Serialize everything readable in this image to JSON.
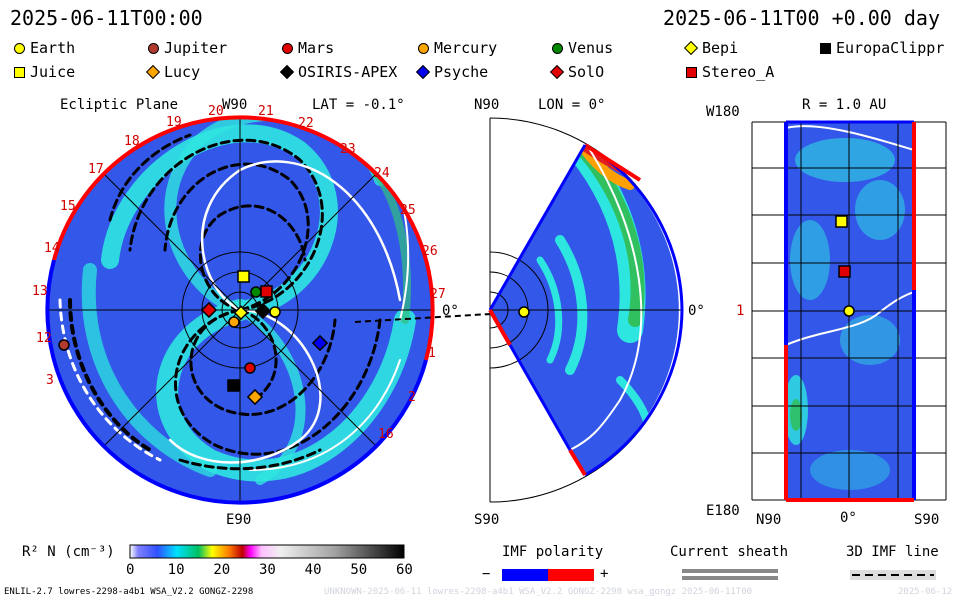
{
  "header": {
    "time_left": "2025-06-11T00:00",
    "time_right": "2025-06-11T00 +0.00 day"
  },
  "legend": [
    {
      "label": "Earth",
      "shape": "circle",
      "color": "#ffff00"
    },
    {
      "label": "Jupiter",
      "shape": "circle",
      "color": "#b03a2e"
    },
    {
      "label": "Mars",
      "shape": "circle",
      "color": "#e00000"
    },
    {
      "label": "Mercury",
      "shape": "circle",
      "color": "#ffa500"
    },
    {
      "label": "Venus",
      "shape": "circle",
      "color": "#008800"
    },
    {
      "label": "Bepi",
      "shape": "diamond",
      "color": "#ffff00"
    },
    {
      "label": "EuropaClippr",
      "shape": "square",
      "color": "#000000"
    },
    {
      "label": "Juice",
      "shape": "square",
      "color": "#ffff00"
    },
    {
      "label": "Lucy",
      "shape": "diamond",
      "color": "#ffa500"
    },
    {
      "label": "OSIRIS-APEX",
      "shape": "diamond",
      "color": "#000000"
    },
    {
      "label": "Psyche",
      "shape": "diamond",
      "color": "#0000ee"
    },
    {
      "label": "SolO",
      "shape": "diamond",
      "color": "#e00000"
    },
    {
      "label": "Stereo_A",
      "shape": "square",
      "color": "#e00000"
    }
  ],
  "ecliptic": {
    "title": "Ecliptic Plane",
    "top_label": "W90",
    "lat": "LAT = -0.1°",
    "bottom_label": "E90",
    "carrington_ticks": [
      "17",
      "18",
      "19",
      "20",
      "21",
      "22",
      "23",
      "24",
      "25",
      "26",
      "27",
      "1",
      "2",
      "3",
      "12",
      "13",
      "14",
      "15",
      "16"
    ]
  },
  "meridional": {
    "top_label": "N90",
    "lon": "LON = 0°",
    "bottom_label": "S90",
    "right_label": "0°",
    "zero_label": "0°"
  },
  "radial": {
    "title": "R = 1.0 AU",
    "top_left": "W180",
    "mid_left": "1",
    "bottom_left": "E180",
    "x_labels": [
      "N90",
      "0°",
      "S90"
    ]
  },
  "colorbar": {
    "label": "R² N (cm⁻³)",
    "ticks": [
      "0",
      "10",
      "20",
      "30",
      "40",
      "50",
      "60"
    ]
  },
  "imf": {
    "title": "IMF polarity",
    "minus": "−",
    "plus": "+",
    "sheath": "Current sheath",
    "line3d": "3D IMF line"
  },
  "footer": {
    "model": "ENLIL-2.7 lowres-2298-a4b1 WSA_V2.2 GONGZ-2298",
    "run": "UNKNOWN-2025-06-11 lowres-2298-a4b1 WSA_V2.2 GONGZ-2298 wsa_gongz 2025-06-11T00",
    "date": "2025-06-12"
  },
  "colors": {
    "background_blue": "#2f5ae6",
    "mid_cyan": "#22e0e0",
    "boundary_red": "#ff0000",
    "boundary_blue": "#0000ff"
  }
}
